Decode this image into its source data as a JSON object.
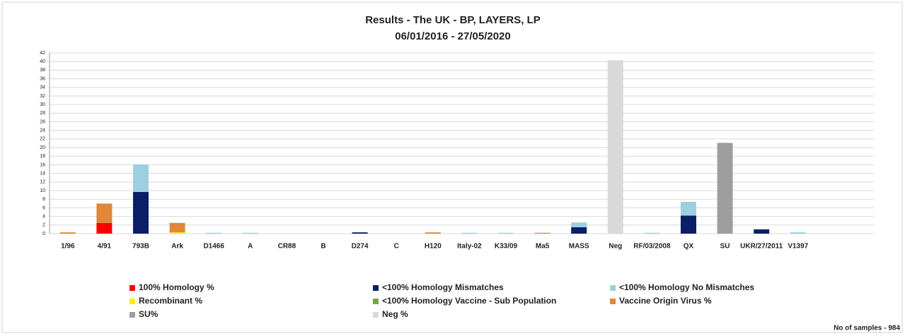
{
  "chart_data": {
    "type": "stacked-bar",
    "title": "Results - The UK - BP, LAYERS, LP",
    "subtitle": "06/01/2016 - 27/05/2020",
    "footnote": "No of samples - 984",
    "categories": [
      "1/96",
      "4/91",
      "793B",
      "Ark",
      "D1466",
      "A",
      "CR88",
      "B",
      "D274",
      "C",
      "H120",
      "Italy-02",
      "K33/09",
      "Ma5",
      "MASS",
      "Neg",
      "RF/03/2008",
      "QX",
      "SU",
      "UKR/27/2011",
      "V1397"
    ],
    "series": [
      {
        "name": "100% Homology %",
        "color": "#ff0000",
        "values": [
          0,
          2.5,
          0,
          0,
          0,
          0,
          0,
          0,
          0,
          0,
          0,
          0,
          0,
          0,
          0,
          0,
          0,
          0,
          0,
          0,
          0
        ]
      },
      {
        "name": "<100% Homology Mismatches",
        "color": "#0b1f66",
        "values": [
          0,
          0,
          9.7,
          0,
          0,
          0,
          0,
          0,
          0.3,
          0,
          0,
          0,
          0,
          0,
          1.5,
          0,
          0,
          4.2,
          0,
          1,
          0
        ]
      },
      {
        "name": "<100% Homology No Mismatches",
        "color": "#9dcfe0",
        "values": [
          0,
          0,
          6.4,
          0,
          0.2,
          0.2,
          0,
          0,
          0,
          0,
          0,
          0.2,
          0.2,
          0,
          1.1,
          0,
          0.2,
          3.2,
          0,
          0,
          0.3
        ]
      },
      {
        "name": "Recombinant %",
        "color": "#ffee00",
        "values": [
          0,
          0,
          0,
          0.3,
          0,
          0,
          0,
          0,
          0,
          0,
          0,
          0,
          0,
          0,
          0,
          0,
          0,
          0,
          0,
          0,
          0
        ]
      },
      {
        "name": "<100% Homology Vaccine - Sub Population",
        "color": "#70a845",
        "values": [
          0,
          0,
          0,
          0,
          0,
          0,
          0,
          0,
          0,
          0,
          0,
          0,
          0,
          0,
          0,
          0,
          0,
          0,
          0,
          0,
          0
        ]
      },
      {
        "name": "Vaccine Origin Virus %",
        "color": "#e0873a",
        "values": [
          0.3,
          4.5,
          0,
          2.2,
          0,
          0,
          0,
          0,
          0,
          0,
          0.3,
          0,
          0,
          0.2,
          0,
          0,
          0,
          0,
          0,
          0,
          0
        ]
      },
      {
        "name": "SU%",
        "color": "#9e9e9e",
        "values": [
          0,
          0,
          0,
          0,
          0,
          0,
          0,
          0,
          0,
          0,
          0,
          0,
          0,
          0,
          0,
          0,
          0,
          0,
          21.1,
          0,
          0
        ]
      },
      {
        "name": "Neg %",
        "color": "#d9d9d9",
        "values": [
          0,
          0,
          0,
          0,
          0,
          0,
          0,
          0,
          0,
          0,
          0,
          0,
          0,
          0,
          0,
          40.3,
          0,
          0,
          0,
          0,
          0
        ]
      }
    ],
    "ylim": [
      0,
      42
    ],
    "yticks": [
      0,
      2,
      4,
      6,
      8,
      10,
      12,
      14,
      16,
      18,
      20,
      22,
      24,
      26,
      28,
      30,
      32,
      34,
      36,
      38,
      40,
      42
    ],
    "grid": true
  }
}
